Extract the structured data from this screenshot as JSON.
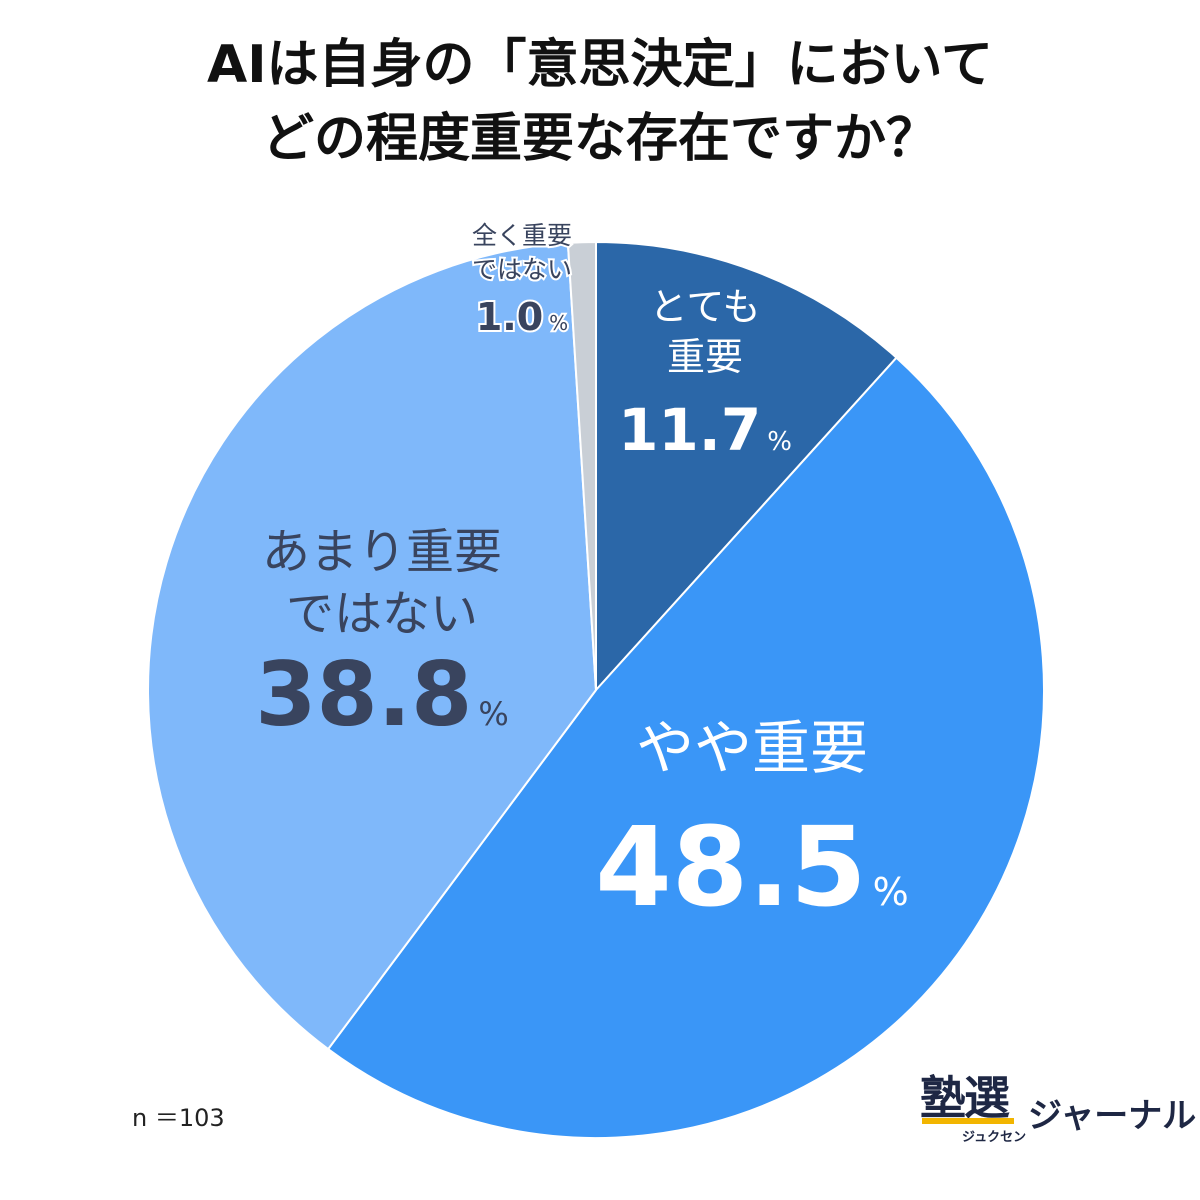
{
  "title": {
    "line1": "AIは自身の「意思決定」において",
    "line2": "どの程度重要な存在ですか？"
  },
  "sample_size": "n ＝103",
  "logo": {
    "kanji": "塾選",
    "reading": "ジュクセン",
    "word": "ジャーナル"
  },
  "chart_data": {
    "type": "pie",
    "title": "AIは自身の「意思決定」においてどの程度重要な存在ですか？",
    "unit": "%",
    "slices": [
      {
        "label": "とても重要",
        "label_lines": [
          "とても",
          "重要"
        ],
        "value": 11.7,
        "value_text": "11.7",
        "color": "#2b67a8",
        "text_color": "#ffffff"
      },
      {
        "label": "やや重要",
        "label_lines": [
          "やや重要"
        ],
        "value": 48.5,
        "value_text": "48.5",
        "color": "#3a96f7",
        "text_color": "#ffffff"
      },
      {
        "label": "あまり重要ではない",
        "label_lines": [
          "あまり重要",
          "ではない"
        ],
        "value": 38.8,
        "value_text": "38.8",
        "color": "#7fb8fa",
        "text_color": "#39445e"
      },
      {
        "label": "全く重要ではない",
        "label_lines": [
          "全く重要",
          "ではない"
        ],
        "value": 1.0,
        "value_text": "1.0",
        "color": "#c9cfd6",
        "text_color": "#39445e"
      }
    ]
  }
}
